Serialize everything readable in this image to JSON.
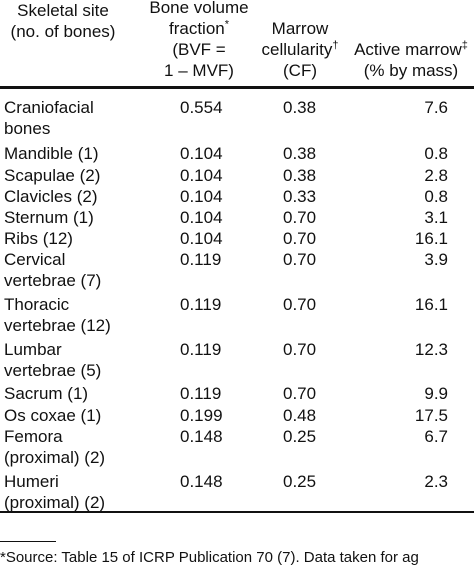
{
  "headers": {
    "site": [
      "Skeletal site",
      "(no. of bones)"
    ],
    "bvf": [
      "Bone volume",
      "fraction*",
      "(BVF =",
      "1 – MVF)"
    ],
    "cf": [
      "Marrow",
      "cellularity†",
      "(CF)"
    ],
    "active": [
      "Active marrow‡",
      "(% by mass)"
    ]
  },
  "rows": [
    {
      "site": [
        "Craniofacial",
        "bones"
      ],
      "bvf": "0.554",
      "cf": "0.38",
      "active": "7.6"
    },
    {
      "site": [
        "Mandible (1)"
      ],
      "bvf": "0.104",
      "cf": "0.38",
      "active": "0.8"
    },
    {
      "site": [
        "Scapulae (2)"
      ],
      "bvf": "0.104",
      "cf": "0.38",
      "active": "2.8"
    },
    {
      "site": [
        "Clavicles (2)"
      ],
      "bvf": "0.104",
      "cf": "0.33",
      "active": "0.8"
    },
    {
      "site": [
        "Sternum (1)"
      ],
      "bvf": "0.104",
      "cf": "0.70",
      "active": "3.1"
    },
    {
      "site": [
        "Ribs (12)"
      ],
      "bvf": "0.104",
      "cf": "0.70",
      "active": "16.1"
    },
    {
      "site": [
        "Cervical",
        "vertebrae (7)"
      ],
      "bvf": "0.119",
      "cf": "0.70",
      "active": "3.9"
    },
    {
      "site": [
        "Thoracic",
        "vertebrae (12)"
      ],
      "bvf": "0.119",
      "cf": "0.70",
      "active": "16.1"
    },
    {
      "site": [
        "Lumbar",
        "vertebrae (5)"
      ],
      "bvf": "0.119",
      "cf": "0.70",
      "active": "12.3"
    },
    {
      "site": [
        "Sacrum (1)"
      ],
      "bvf": "0.119",
      "cf": "0.70",
      "active": "9.9"
    },
    {
      "site": [
        "Os coxae (1)"
      ],
      "bvf": "0.199",
      "cf": "0.48",
      "active": "17.5"
    },
    {
      "site": [
        "Femora",
        "(proximal) (2)"
      ],
      "bvf": "0.148",
      "cf": "0.25",
      "active": "6.7"
    },
    {
      "site": [
        "Humeri",
        "(proximal) (2)"
      ],
      "bvf": "0.148",
      "cf": "0.25",
      "active": "2.3"
    }
  ],
  "footnote": "*Source: Table 15 of ICRP Publication 70 (7). Data taken for ag"
}
